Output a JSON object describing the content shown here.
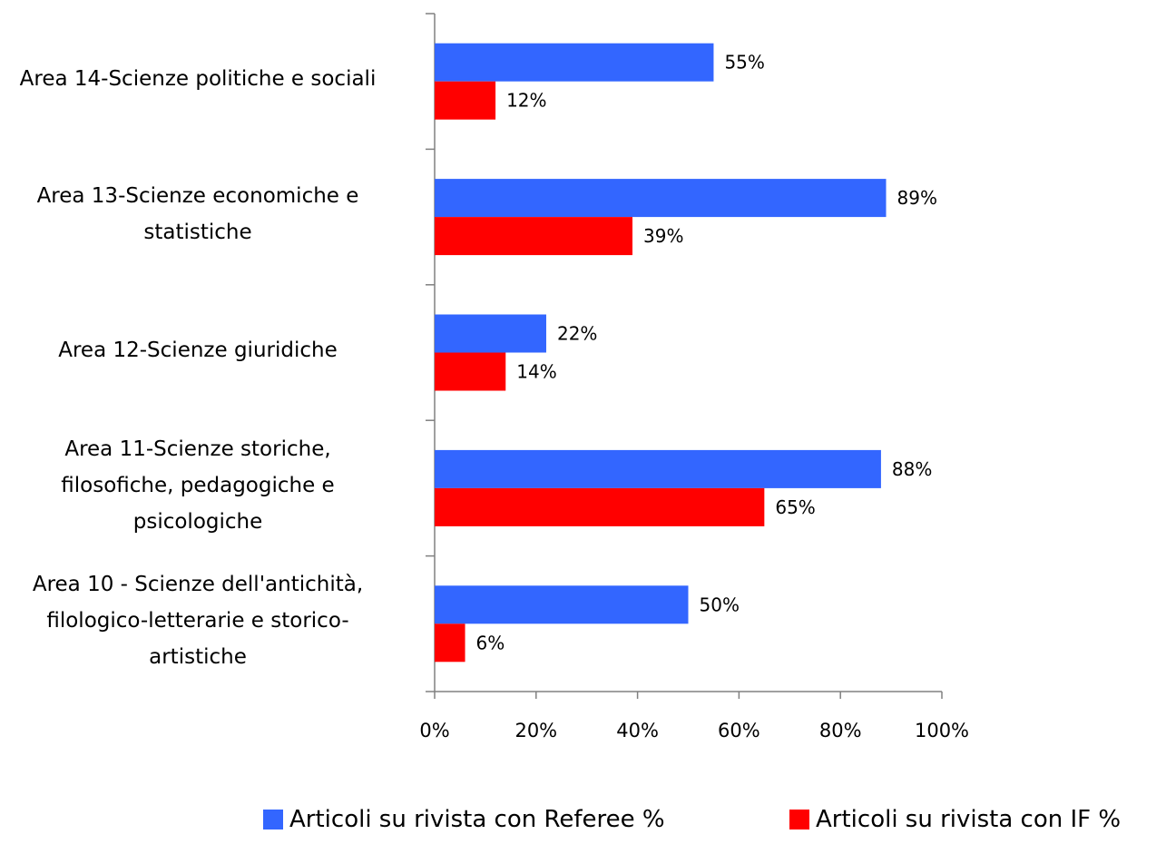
{
  "chart_data": {
    "type": "bar",
    "orientation": "horizontal",
    "categories": [
      "Area 14-Scienze politiche e sociali",
      "Area 13-Scienze economiche e statistiche",
      "Area 12-Scienze giuridiche",
      "Area 11-Scienze storiche, filosofiche, pedagogiche e psicologiche",
      "Area 10 - Scienze dell'antichità, filologico-letterarie e storico-artistiche"
    ],
    "category_lines": [
      [
        "Area 14-Scienze politiche e sociali"
      ],
      [
        "Area 13-Scienze economiche e",
        "statistiche"
      ],
      [
        "Area 12-Scienze giuridiche"
      ],
      [
        "Area 11-Scienze storiche,",
        "filosofiche, pedagogiche e",
        "psicologiche"
      ],
      [
        "Area 10 - Scienze dell'antichità,",
        "filologico-letterarie e storico-",
        "artistiche"
      ]
    ],
    "series": [
      {
        "name": "Articoli su rivista con Referee %",
        "color": "#3366FF",
        "values": [
          55,
          89,
          22,
          88,
          50
        ],
        "labels": [
          "55%",
          "89%",
          "22%",
          "88%",
          "50%"
        ]
      },
      {
        "name": "Articoli su rivista con IF %",
        "color": "#FF0000",
        "values": [
          12,
          39,
          14,
          65,
          6
        ],
        "labels": [
          "12%",
          "39%",
          "14%",
          "65%",
          "6%"
        ]
      }
    ],
    "xlim": [
      0,
      100
    ],
    "xticks": [
      "0%",
      "20%",
      "40%",
      "60%",
      "80%",
      "100%"
    ],
    "grid": false,
    "legend_position": "bottom"
  }
}
